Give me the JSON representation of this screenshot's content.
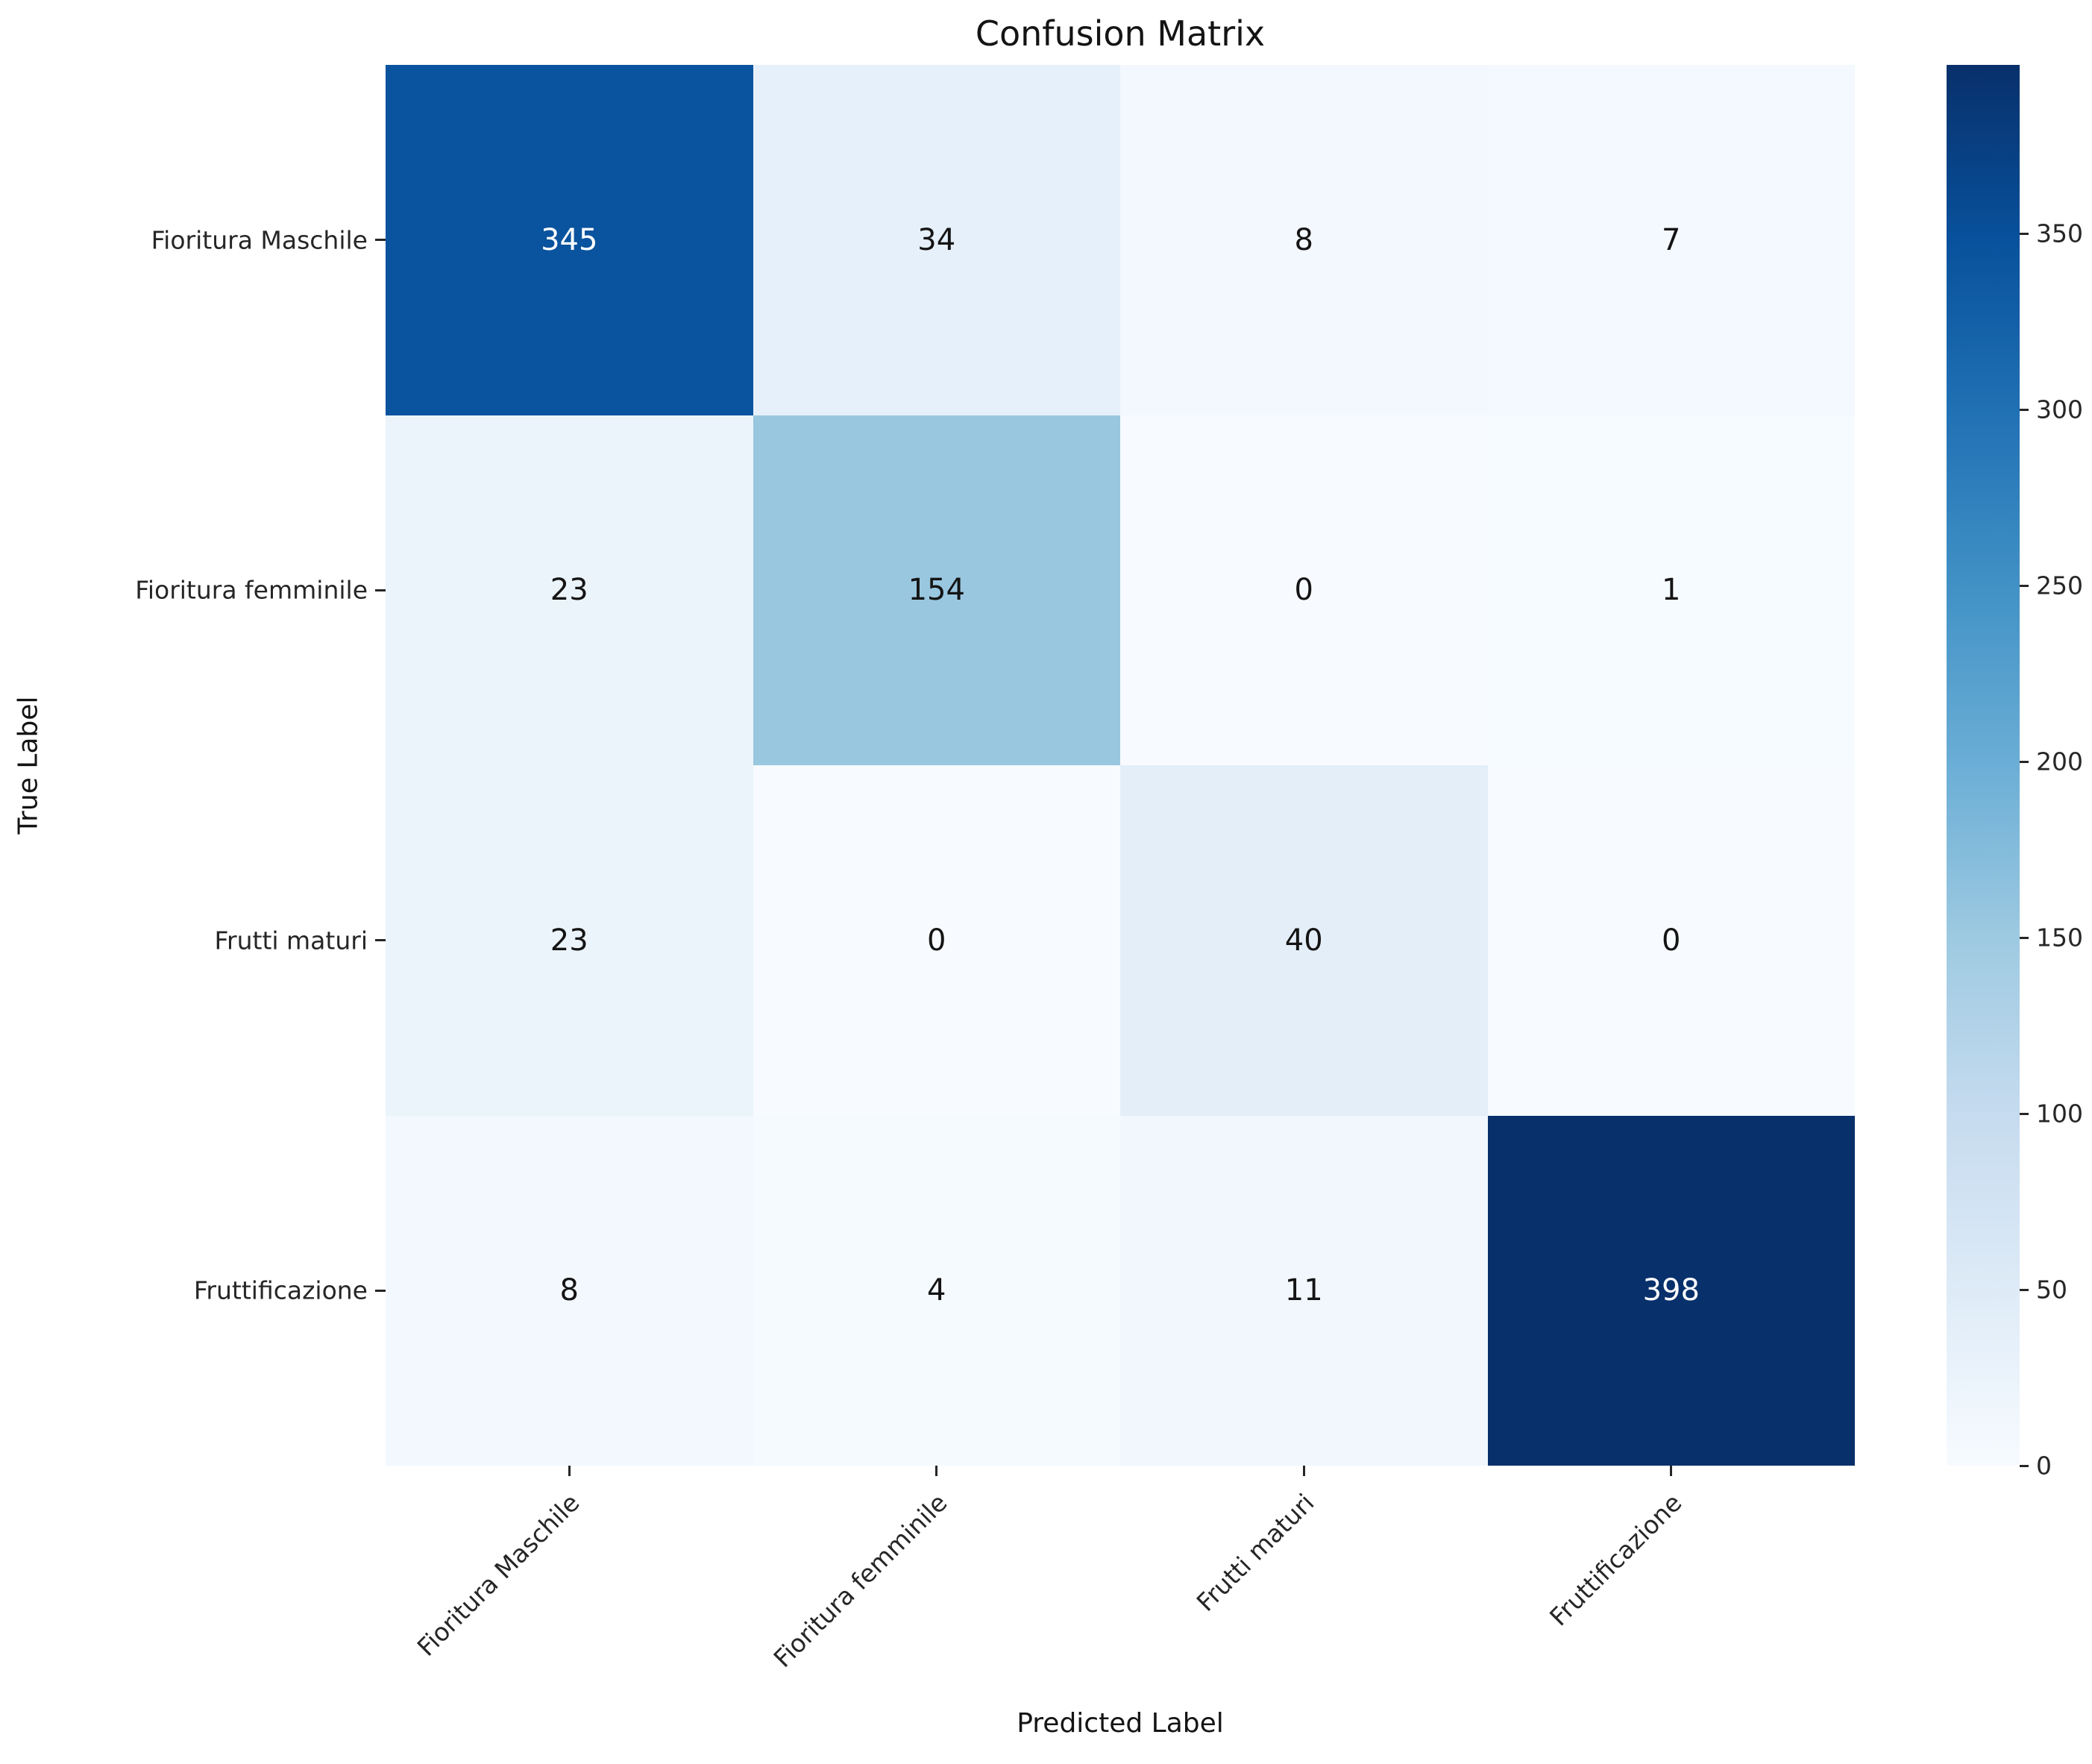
{
  "figure": {
    "background": "#ffffff"
  },
  "chart_data": {
    "type": "heatmap",
    "title": "Confusion Matrix",
    "xlabel": "Predicted Label",
    "ylabel": "True Label",
    "categories": [
      "Fioritura Maschile",
      "Fioritura femminile",
      "Frutti maturi",
      "Fruttificazione"
    ],
    "rows": [
      {
        "label": "Fioritura Maschile",
        "values": [
          345,
          34,
          8,
          7
        ]
      },
      {
        "label": "Fioritura femminile",
        "values": [
          23,
          154,
          0,
          1
        ]
      },
      {
        "label": "Frutti maturi",
        "values": [
          23,
          0,
          40,
          0
        ]
      },
      {
        "label": "Fruttificazione",
        "values": [
          8,
          4,
          11,
          398
        ]
      }
    ],
    "vmin": 0,
    "vmax": 398,
    "colormap_name": "Blues",
    "colormap": {
      "stops": [
        "#f7fbff",
        "#deebf7",
        "#c6dbef",
        "#9ecae1",
        "#6baed6",
        "#4292c6",
        "#2171b5",
        "#08519c",
        "#08306b"
      ]
    },
    "colorbar_ticks": [
      0,
      50,
      100,
      150,
      200,
      250,
      300,
      350
    ],
    "annotation_colors": {
      "dark_cell_text": "#ffffff",
      "light_cell_text": "#141414"
    },
    "legend_position": "right-colorbar",
    "grid": false
  }
}
